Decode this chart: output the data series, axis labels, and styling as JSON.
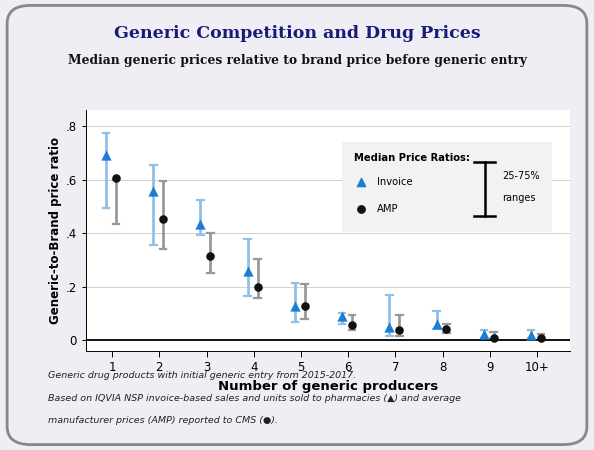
{
  "title": "Generic Competition and Drug Prices",
  "subtitle": "Median generic prices relative to brand price before generic entry",
  "xlabel": "Number of generic producers",
  "ylabel": "Generic-to-Brand price ratio",
  "footnote1": "Generic drug products with initial generic entry from 2015-2017.",
  "footnote2": "Based on IQVIA NSP invoice-based sales and units sold to pharmacies (▲) and average",
  "footnote3": "manufacturer prices (AMP) reported to CMS (●).",
  "x_labels": [
    "1",
    "2",
    "3",
    "4",
    "5",
    "6",
    "7",
    "8",
    "9",
    "10+"
  ],
  "invoice_median": [
    0.693,
    0.558,
    0.435,
    0.26,
    0.13,
    0.09,
    0.048,
    0.062,
    0.022,
    0.018
  ],
  "invoice_q1": [
    0.495,
    0.355,
    0.395,
    0.165,
    0.07,
    0.06,
    0.015,
    0.042,
    0.01,
    0.008
  ],
  "invoice_q3": [
    0.775,
    0.655,
    0.525,
    0.38,
    0.215,
    0.102,
    0.17,
    0.108,
    0.04,
    0.038
  ],
  "amp_median": [
    0.605,
    0.455,
    0.315,
    0.2,
    0.13,
    0.058,
    0.04,
    0.042,
    0.01,
    0.01
  ],
  "amp_q1": [
    0.435,
    0.34,
    0.25,
    0.16,
    0.08,
    0.038,
    0.015,
    0.028,
    0.005,
    0.005
  ],
  "amp_q3": [
    0.6,
    0.595,
    0.4,
    0.305,
    0.21,
    0.095,
    0.095,
    0.06,
    0.03,
    0.025
  ],
  "invoice_color": "#1a7fd4",
  "invoice_ci_color": "#90c0e8",
  "amp_color": "#111111",
  "amp_ci_color": "#999999",
  "ylim": [
    -0.04,
    0.86
  ],
  "yticks": [
    0.0,
    0.2,
    0.4,
    0.6,
    0.8
  ],
  "ytick_labels": [
    "0",
    ".2",
    ".4",
    ".6",
    ".8"
  ],
  "background_color": "#eeeef4",
  "plot_bg_color": "#ffffff",
  "title_color": "#1a1a7a",
  "subtitle_color": "#111111",
  "legend_bg": "#f2f2f2"
}
